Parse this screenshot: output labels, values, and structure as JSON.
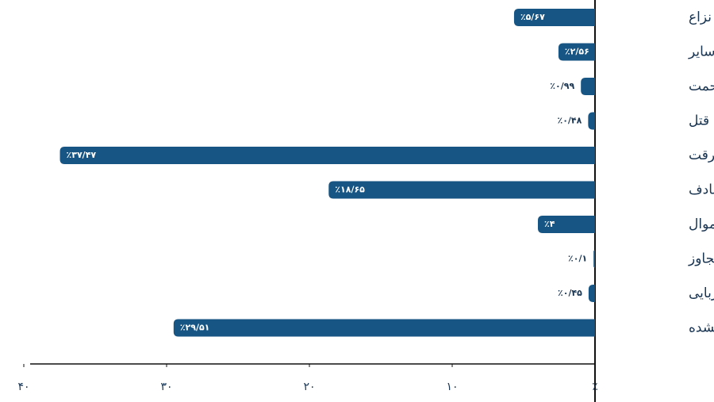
{
  "chart_data": {
    "type": "hbar",
    "categories": [
      "نزاع",
      "سایر",
      "مزاحمت",
      "قتل",
      "سرقت",
      "تصادف",
      "تخریب اموال",
      "تجاوز",
      "آدم ربایی",
      "ثبت نشده"
    ],
    "values": [
      5.67,
      2.56,
      0.99,
      0.48,
      37.47,
      18.65,
      4,
      0.1,
      0.45,
      29.51
    ],
    "value_labels": [
      "٪۵/۶۷",
      "٪۲/۵۶",
      "٪۰/۹۹",
      "٪۰/۴۸",
      "٪۳۷/۴۷",
      "٪۱۸/۶۵",
      "٪۴",
      "٪۰/۱",
      "٪۰/۴۵",
      "٪۲۹/۵۱"
    ],
    "color": "#175584",
    "xlim": [
      0,
      40
    ],
    "xticks": [
      {
        "value": 0,
        "label": "٪"
      },
      {
        "value": 10,
        "label": "۱۰"
      },
      {
        "value": 20,
        "label": "۲۰"
      },
      {
        "value": 30,
        "label": "۳۰"
      },
      {
        "value": 40,
        "label": "۴۰"
      }
    ]
  }
}
